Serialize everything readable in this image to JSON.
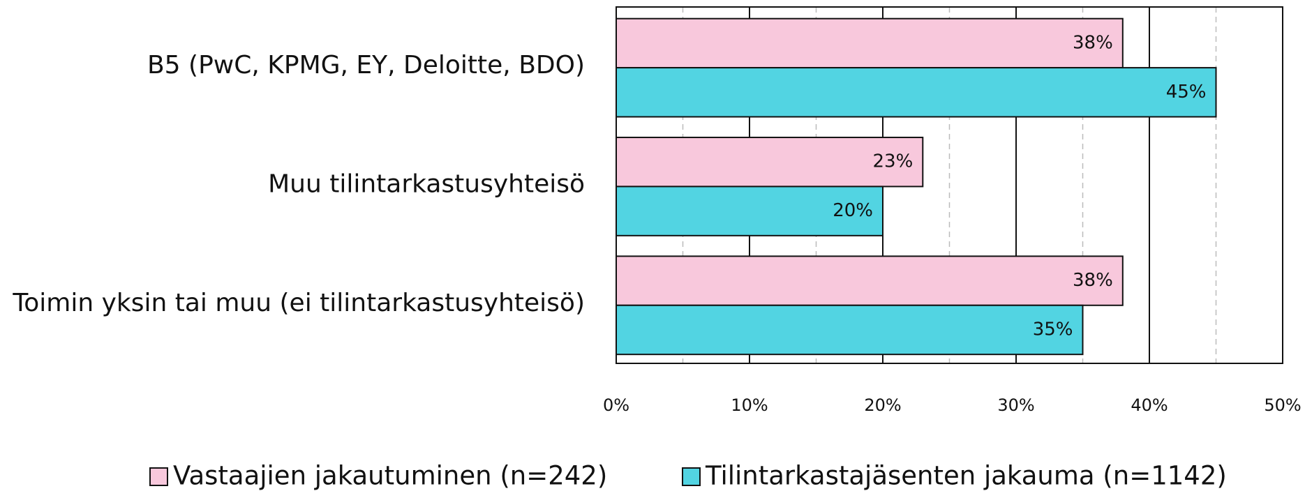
{
  "chart_data": {
    "type": "bar",
    "orientation": "horizontal",
    "categories": [
      "B5 (PwC, KPMG, EY, Deloitte, BDO)",
      "Muu tilintarkastusyhteisö",
      "Toimin yksin tai muu (ei tilintarkastusyhteisö)"
    ],
    "series": [
      {
        "name": "Vastaajien jakautuminen (n=242)",
        "color": "#f8c8dc",
        "values": [
          38,
          23,
          38
        ],
        "value_labels": [
          "38%",
          "23%",
          "38%"
        ]
      },
      {
        "name": "Tilintarkastajäsenten jakauma (n=1142)",
        "color": "#52d4e2",
        "values": [
          45,
          20,
          35
        ],
        "value_labels": [
          "45%",
          "20%",
          "35%"
        ]
      }
    ],
    "xlim": [
      0,
      50
    ],
    "xticks": [
      {
        "value": 0,
        "label": "0%"
      },
      {
        "value": 10,
        "label": "10%"
      },
      {
        "value": 20,
        "label": "20%"
      },
      {
        "value": 30,
        "label": "30%"
      },
      {
        "value": 40,
        "label": "40%"
      },
      {
        "value": 50,
        "label": "50%"
      }
    ],
    "xminorticks": [
      5,
      15,
      25,
      35,
      45
    ],
    "grid": true,
    "legend": "bottom"
  }
}
